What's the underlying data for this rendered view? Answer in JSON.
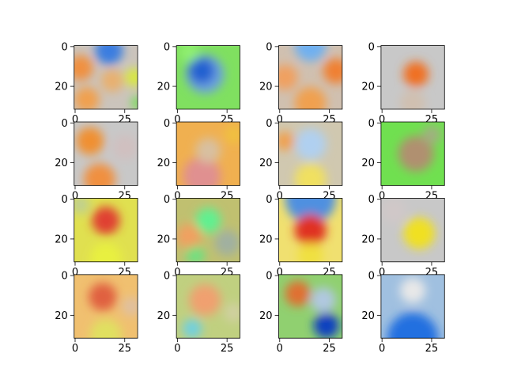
{
  "chart_data": [
    {
      "type": "image",
      "xlim": [
        -0.5,
        31.5
      ],
      "ylim": [
        31.5,
        -0.5
      ],
      "xticks": [
        0,
        25
      ],
      "yticks": [
        0,
        20
      ]
    },
    {
      "type": "image",
      "xlim": [
        -0.5,
        31.5
      ],
      "ylim": [
        31.5,
        -0.5
      ],
      "xticks": [
        0,
        25
      ],
      "yticks": [
        0,
        20
      ]
    },
    {
      "type": "image",
      "xlim": [
        -0.5,
        31.5
      ],
      "ylim": [
        31.5,
        -0.5
      ],
      "xticks": [
        0,
        25
      ],
      "yticks": [
        0,
        20
      ]
    },
    {
      "type": "image",
      "xlim": [
        -0.5,
        31.5
      ],
      "ylim": [
        31.5,
        -0.5
      ],
      "xticks": [
        0,
        25
      ],
      "yticks": [
        0,
        20
      ]
    },
    {
      "type": "image",
      "xlim": [
        -0.5,
        31.5
      ],
      "ylim": [
        31.5,
        -0.5
      ],
      "xticks": [
        0,
        25
      ],
      "yticks": [
        0,
        20
      ]
    },
    {
      "type": "image",
      "xlim": [
        -0.5,
        31.5
      ],
      "ylim": [
        31.5,
        -0.5
      ],
      "xticks": [
        0,
        25
      ],
      "yticks": [
        0,
        20
      ]
    },
    {
      "type": "image",
      "xlim": [
        -0.5,
        31.5
      ],
      "ylim": [
        31.5,
        -0.5
      ],
      "xticks": [
        0,
        25
      ],
      "yticks": [
        0,
        20
      ]
    },
    {
      "type": "image",
      "xlim": [
        -0.5,
        31.5
      ],
      "ylim": [
        31.5,
        -0.5
      ],
      "xticks": [
        0,
        25
      ],
      "yticks": [
        0,
        20
      ]
    },
    {
      "type": "image",
      "xlim": [
        -0.5,
        31.5
      ],
      "ylim": [
        31.5,
        -0.5
      ],
      "xticks": [
        0,
        25
      ],
      "yticks": [
        0,
        20
      ]
    },
    {
      "type": "image",
      "xlim": [
        -0.5,
        31.5
      ],
      "ylim": [
        31.5,
        -0.5
      ],
      "xticks": [
        0,
        25
      ],
      "yticks": [
        0,
        20
      ]
    },
    {
      "type": "image",
      "xlim": [
        -0.5,
        31.5
      ],
      "ylim": [
        31.5,
        -0.5
      ],
      "xticks": [
        0,
        25
      ],
      "yticks": [
        0,
        20
      ]
    },
    {
      "type": "image",
      "xlim": [
        -0.5,
        31.5
      ],
      "ylim": [
        31.5,
        -0.5
      ],
      "xticks": [
        0,
        25
      ],
      "yticks": [
        0,
        20
      ]
    },
    {
      "type": "image",
      "xlim": [
        -0.5,
        31.5
      ],
      "ylim": [
        31.5,
        -0.5
      ],
      "xticks": [
        0,
        25
      ],
      "yticks": [
        0,
        20
      ]
    },
    {
      "type": "image",
      "xlim": [
        -0.5,
        31.5
      ],
      "ylim": [
        31.5,
        -0.5
      ],
      "xticks": [
        0,
        25
      ],
      "yticks": [
        0,
        20
      ]
    },
    {
      "type": "image",
      "xlim": [
        -0.5,
        31.5
      ],
      "ylim": [
        31.5,
        -0.5
      ],
      "xticks": [
        0,
        25
      ],
      "yticks": [
        0,
        20
      ]
    },
    {
      "type": "image",
      "xlim": [
        -0.5,
        31.5
      ],
      "ylim": [
        31.5,
        -0.5
      ],
      "xticks": [
        0,
        25
      ],
      "yticks": [
        0,
        20
      ]
    }
  ]
}
